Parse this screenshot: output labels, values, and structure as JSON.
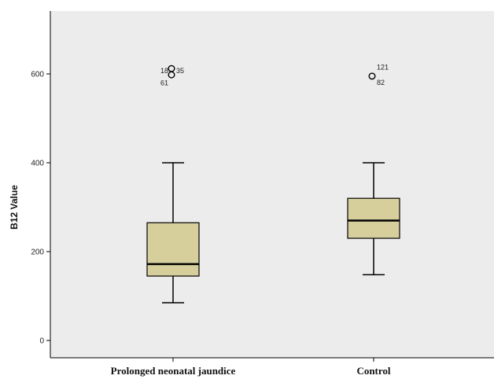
{
  "chart_data": {
    "type": "boxplot",
    "title": "",
    "xlabel": "",
    "ylabel": "B12 Value",
    "ylim": [
      -30,
      740
    ],
    "yticks": [
      0,
      200,
      400,
      600
    ],
    "grid": false,
    "colors": {
      "plot_background": "#ececec",
      "box_fill": "#d6cf9c",
      "stroke": "#000000"
    },
    "categories": [
      "Prolonged neonatal jaundice",
      "Control"
    ],
    "boxes": [
      {
        "category": "Prolonged neonatal jaundice",
        "whisker_low": 85,
        "q1": 145,
        "median": 172,
        "q3": 265,
        "whisker_high": 400,
        "outliers": [
          {
            "label": "18",
            "value": 618
          },
          {
            "label": "35",
            "value": 605
          },
          {
            "label": "61",
            "value": 590
          }
        ]
      },
      {
        "category": "Control",
        "whisker_low": 148,
        "q1": 230,
        "median": 270,
        "q3": 320,
        "whisker_high": 400,
        "outliers": [
          {
            "label": "121",
            "value": 605
          },
          {
            "label": "82",
            "value": 590
          }
        ]
      }
    ]
  }
}
